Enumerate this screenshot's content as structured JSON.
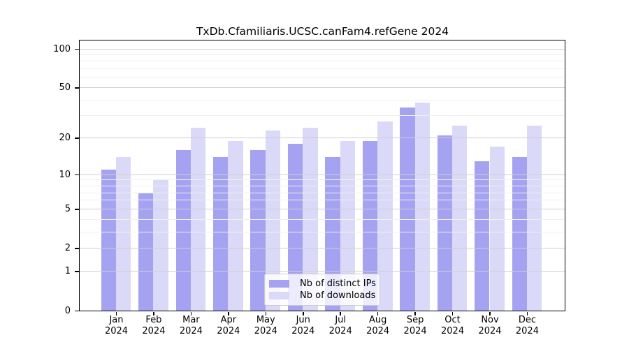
{
  "title": "TxDb.Cfamiliaris.UCSC.canFam4.refGene 2024",
  "chart_data": {
    "type": "bar",
    "categories": [
      "Jan",
      "Feb",
      "Mar",
      "Apr",
      "May",
      "Jun",
      "Jul",
      "Aug",
      "Sep",
      "Oct",
      "Nov",
      "Dec"
    ],
    "x_year_label": "2024",
    "series": [
      {
        "name": "Nb of distinct IPs",
        "color": "#a5a2f2",
        "values": [
          11,
          7,
          16,
          14,
          16,
          18,
          14,
          19,
          35,
          21,
          13,
          14
        ]
      },
      {
        "name": "Nb of downloads",
        "color": "#dbd9f8",
        "values": [
          14,
          9,
          24,
          19,
          23,
          24,
          19,
          27,
          38,
          25,
          17,
          25
        ]
      }
    ],
    "y_scale": "log1p",
    "ylim": [
      0,
      100
    ],
    "y_ticks": [
      0,
      1,
      2,
      5,
      10,
      20,
      50,
      100
    ],
    "major_gridlines": [
      1,
      2,
      5,
      10,
      20,
      50,
      100
    ],
    "minor_gridlines": [
      3,
      4,
      6,
      7,
      8,
      9,
      30,
      40,
      60,
      70,
      80,
      90
    ],
    "major_grid_color": "#cfcfcf",
    "minor_grid_color": "#f0f0f0",
    "grid": "horizontal",
    "legend_position": "inside-bottom-center",
    "axis_color": "#000000",
    "background_color": "#ffffff"
  },
  "legend": {
    "items": [
      {
        "label": "Nb of distinct IPs"
      },
      {
        "label": "Nb of downloads"
      }
    ]
  }
}
